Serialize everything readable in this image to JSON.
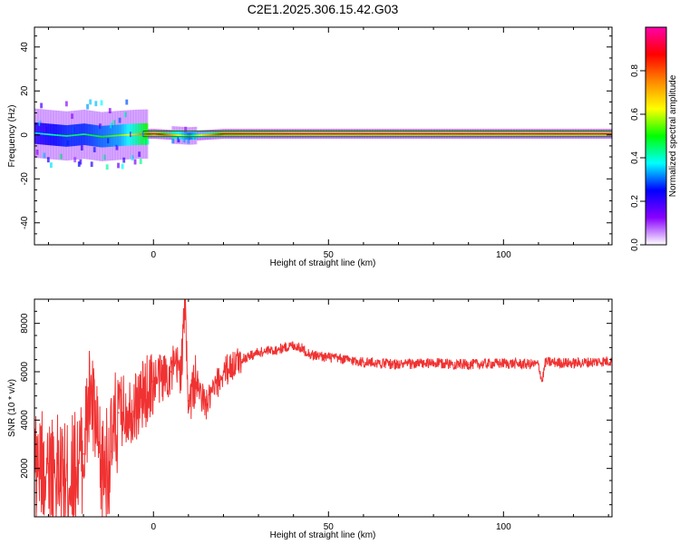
{
  "title": "C2E1.2025.306.15.42.G03",
  "colors": {
    "snr_line": "#f03232",
    "band_core": "#ff1e1e",
    "band_edge": "#00b400"
  },
  "chart_data": [
    {
      "type": "heatmap",
      "xlabel": "Height of straight line (km)",
      "ylabel": "Frequency (Hz)",
      "xlim": [
        -34,
        131
      ],
      "ylim": [
        -50,
        49
      ],
      "x_ticks": [
        0,
        50,
        100
      ],
      "y_ticks": [
        -40,
        -20,
        0,
        20,
        40
      ],
      "grid": false,
      "colorbar": {
        "label": "Normalized spectral amplitude",
        "range": [
          0,
          1
        ],
        "ticks": [
          "0.0",
          "0.2",
          "0.4",
          "0.6",
          "0.8"
        ],
        "colormap": [
          "#ffffff",
          "#8800ff",
          "#0000ff",
          "#00ffff",
          "#00ff00",
          "#ffff00",
          "#ff8800",
          "#ff0000",
          "#ff00aa"
        ]
      },
      "series": [
        {
          "x": [
            -34,
            -30,
            -25,
            -20,
            -15,
            -10,
            -5,
            0,
            10,
            20,
            40,
            60,
            80,
            100,
            131
          ],
          "center_freq": [
            0.8,
            0.2,
            -0.5,
            0.3,
            -0.8,
            -0.2,
            0.3,
            0.5,
            -0.5,
            0.5,
            0.5,
            0.5,
            0.5,
            0.5,
            0.5
          ],
          "amplitude": [
            0.35,
            0.4,
            0.45,
            0.45,
            0.5,
            0.55,
            0.7,
            0.95,
            0.5,
            0.9,
            0.95,
            0.95,
            0.95,
            0.95,
            0.95
          ]
        }
      ]
    },
    {
      "type": "line",
      "xlabel": "Height of straight line (km)",
      "ylabel": "SNR (10 * v/v)",
      "xlim": [
        -34,
        131
      ],
      "ylim": [
        0,
        9000
      ],
      "x_ticks": [
        0,
        50,
        100
      ],
      "y_ticks": [
        2000,
        4000,
        6000,
        8000
      ],
      "grid": false,
      "series": [
        {
          "x": [
            -34,
            -30,
            -25,
            -20,
            -18,
            -15,
            -12,
            -10,
            -5,
            0,
            5,
            8,
            9,
            10,
            12,
            15,
            20,
            25,
            30,
            35,
            40,
            42,
            45,
            50,
            60,
            70,
            80,
            90,
            100,
            110,
            111,
            112,
            120,
            131
          ],
          "y": [
            1800,
            2200,
            1500,
            2600,
            5200,
            1800,
            2700,
            4300,
            4600,
            5600,
            6000,
            6200,
            8800,
            4800,
            5600,
            4600,
            6000,
            6500,
            6800,
            6900,
            7100,
            7000,
            6700,
            6600,
            6400,
            6300,
            6350,
            6300,
            6350,
            6300,
            5600,
            6400,
            6350,
            6450
          ]
        }
      ]
    }
  ]
}
